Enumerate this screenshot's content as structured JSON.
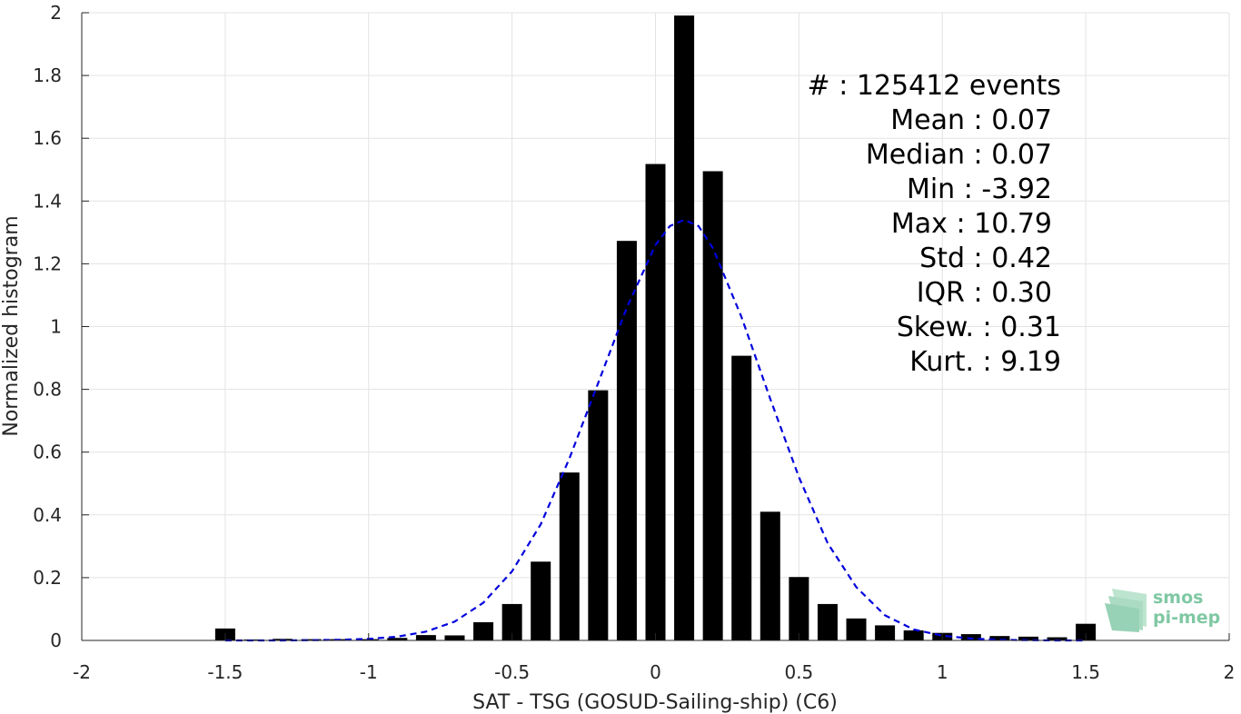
{
  "chart_data": {
    "type": "bar",
    "xlabel": "SAT - TSG (GOSUD-Sailing-ship) (C6)",
    "ylabel": "Normalized histogram",
    "xlim": [
      -2,
      2
    ],
    "ylim": [
      0,
      2
    ],
    "xticks": [
      -2,
      -1.5,
      -1,
      -0.5,
      0,
      0.5,
      1,
      1.5,
      2
    ],
    "xtick_labels": [
      "-2",
      "-1.5",
      "-1",
      "-0.5",
      "0",
      "0.5",
      "1",
      "1.5",
      "2"
    ],
    "yticks": [
      0,
      0.2,
      0.4,
      0.6,
      0.8,
      1,
      1.2,
      1.4,
      1.6,
      1.8,
      2
    ],
    "ytick_labels": [
      "0",
      "0.2",
      "0.4",
      "0.6",
      "0.8",
      "1",
      "1.2",
      "1.4",
      "1.6",
      "1.8",
      "2"
    ],
    "grid": true,
    "bar_color": "#000000",
    "curve_color": "#0000dd",
    "bars": {
      "x": [
        -1.5,
        -1.4,
        -1.3,
        -1.2,
        -1.1,
        -1.0,
        -0.9,
        -0.8,
        -0.7,
        -0.6,
        -0.5,
        -0.4,
        -0.3,
        -0.2,
        -0.1,
        0.0,
        0.1,
        0.2,
        0.3,
        0.4,
        0.5,
        0.6,
        0.7,
        0.8,
        0.9,
        1.0,
        1.1,
        1.2,
        1.3,
        1.4,
        1.5
      ],
      "values": [
        0.038,
        0.003,
        0.005,
        0.004,
        0.004,
        0.004,
        0.008,
        0.017,
        0.016,
        0.058,
        0.116,
        0.251,
        0.535,
        0.797,
        1.273,
        1.518,
        1.991,
        1.495,
        0.907,
        0.41,
        0.202,
        0.116,
        0.07,
        0.048,
        0.032,
        0.024,
        0.02,
        0.014,
        0.012,
        0.01,
        0.053
      ]
    },
    "fit_curve": {
      "type": "dashed",
      "x": [
        -1.5,
        -1.4,
        -1.3,
        -1.2,
        -1.1,
        -1.0,
        -0.9,
        -0.8,
        -0.7,
        -0.6,
        -0.5,
        -0.4,
        -0.3,
        -0.2,
        -0.1,
        0.0,
        0.05,
        0.1,
        0.15,
        0.2,
        0.3,
        0.4,
        0.5,
        0.6,
        0.7,
        0.8,
        0.9,
        1.0,
        1.1,
        1.2,
        1.3,
        1.4,
        1.5
      ],
      "y": [
        0.0,
        0.0,
        0.0,
        0.001,
        0.002,
        0.005,
        0.012,
        0.028,
        0.06,
        0.12,
        0.22,
        0.37,
        0.58,
        0.82,
        1.06,
        1.26,
        1.32,
        1.34,
        1.32,
        1.25,
        1.03,
        0.77,
        0.52,
        0.31,
        0.17,
        0.08,
        0.035,
        0.015,
        0.006,
        0.002,
        0.001,
        0.0,
        0.0
      ]
    },
    "annotations": [
      "#  : 125412 events",
      "Mean : 0.07",
      "Median : 0.07",
      "Min : -3.92",
      "Max : 10.79",
      "Std : 0.42",
      "IQR : 0.30",
      "Skew. : 0.31",
      "Kurt. : 9.19"
    ]
  },
  "logo": {
    "line1": "smos",
    "line2": "pi-mep",
    "color": "#7fc8a3"
  }
}
